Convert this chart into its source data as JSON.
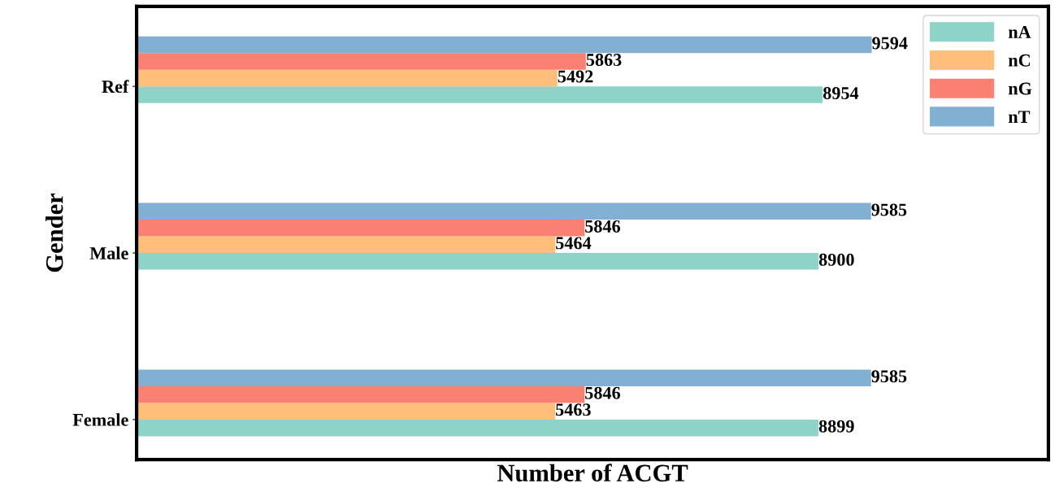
{
  "chart_data": {
    "type": "bar",
    "orientation": "horizontal",
    "xlabel": "Number of ACGT",
    "ylabel": "Gender",
    "categories": [
      "Ref",
      "Male",
      "Female"
    ],
    "series": [
      {
        "name": "nA",
        "color": "#8dd3c7",
        "values": [
          8954,
          8900,
          8899
        ]
      },
      {
        "name": "nC",
        "color": "#ffbe7a",
        "values": [
          5492,
          5464,
          5463
        ]
      },
      {
        "name": "nG",
        "color": "#fa8072",
        "values": [
          5863,
          5846,
          5846
        ]
      },
      {
        "name": "nT",
        "color": "#82b0d2",
        "values": [
          9594,
          9585,
          9585
        ]
      }
    ],
    "xlim": [
      0,
      11900
    ],
    "data_labels": true,
    "tick_labels": "y",
    "legend": "top right",
    "grid": false
  }
}
